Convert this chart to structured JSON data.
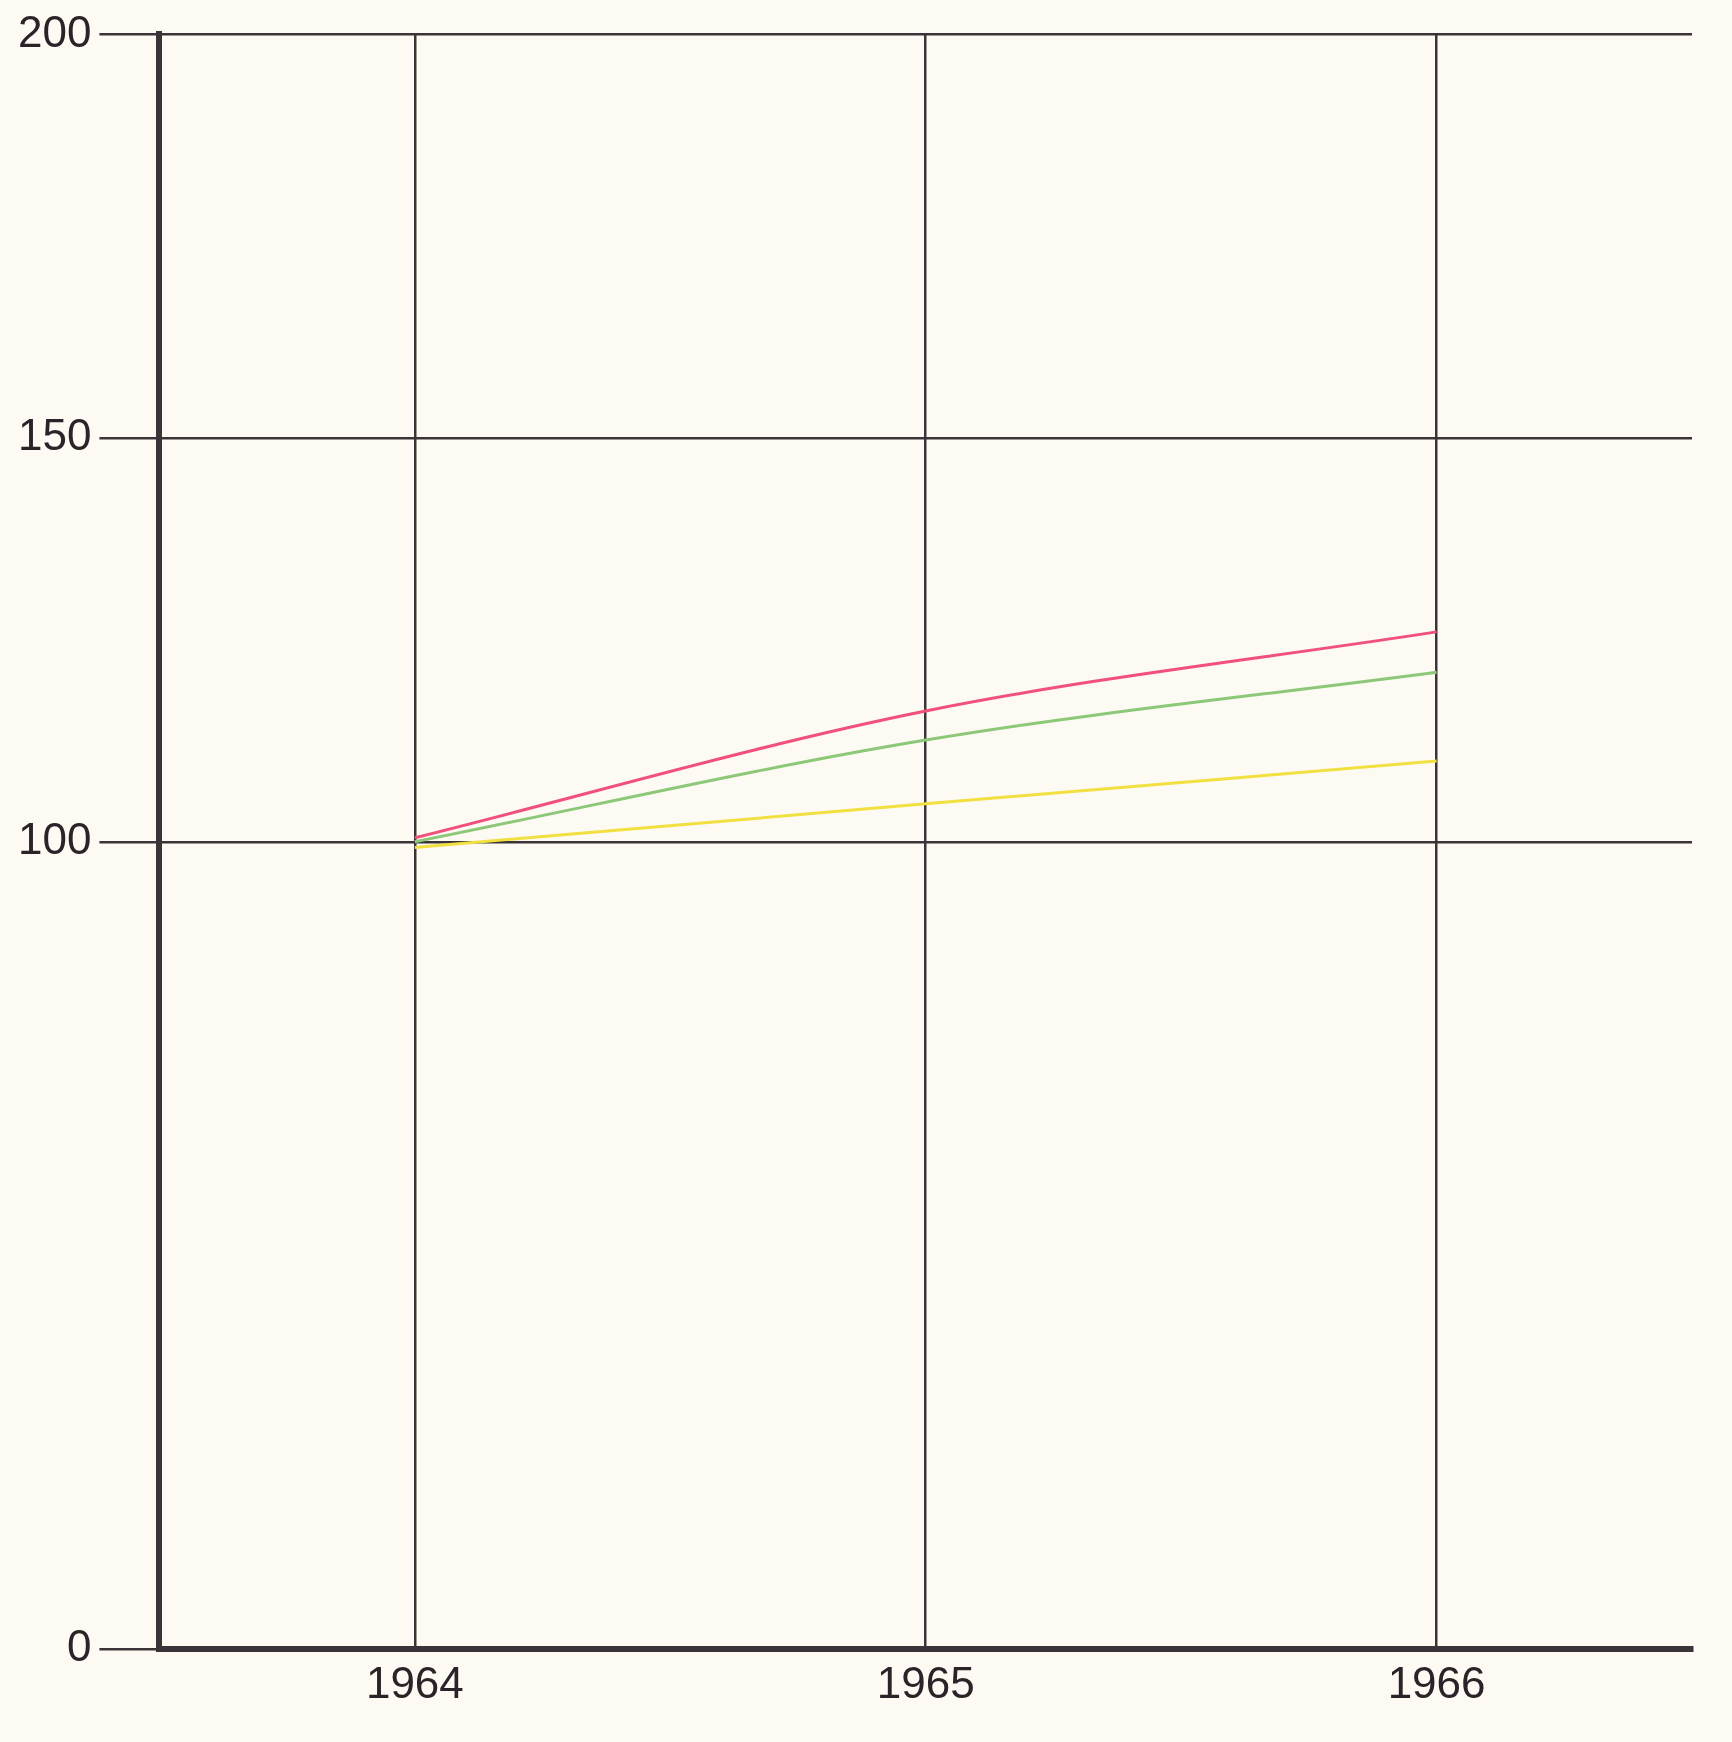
{
  "chart_data": {
    "type": "line",
    "categories": [
      "1964",
      "1965",
      "1966"
    ],
    "series": [
      {
        "color": "#f0507a",
        "values": [
          100.5,
          116.2,
          126
        ]
      },
      {
        "color": "#8cc878",
        "values": [
          100,
          112.6,
          121
        ]
      },
      {
        "color": "#f0e040",
        "values": [
          99.3,
          104.7,
          110
        ]
      }
    ],
    "ylim": [
      0,
      200
    ],
    "yticks": [
      0,
      100,
      150,
      200
    ],
    "grid": true,
    "legend": false,
    "marker": "none",
    "line_style": "solid"
  }
}
